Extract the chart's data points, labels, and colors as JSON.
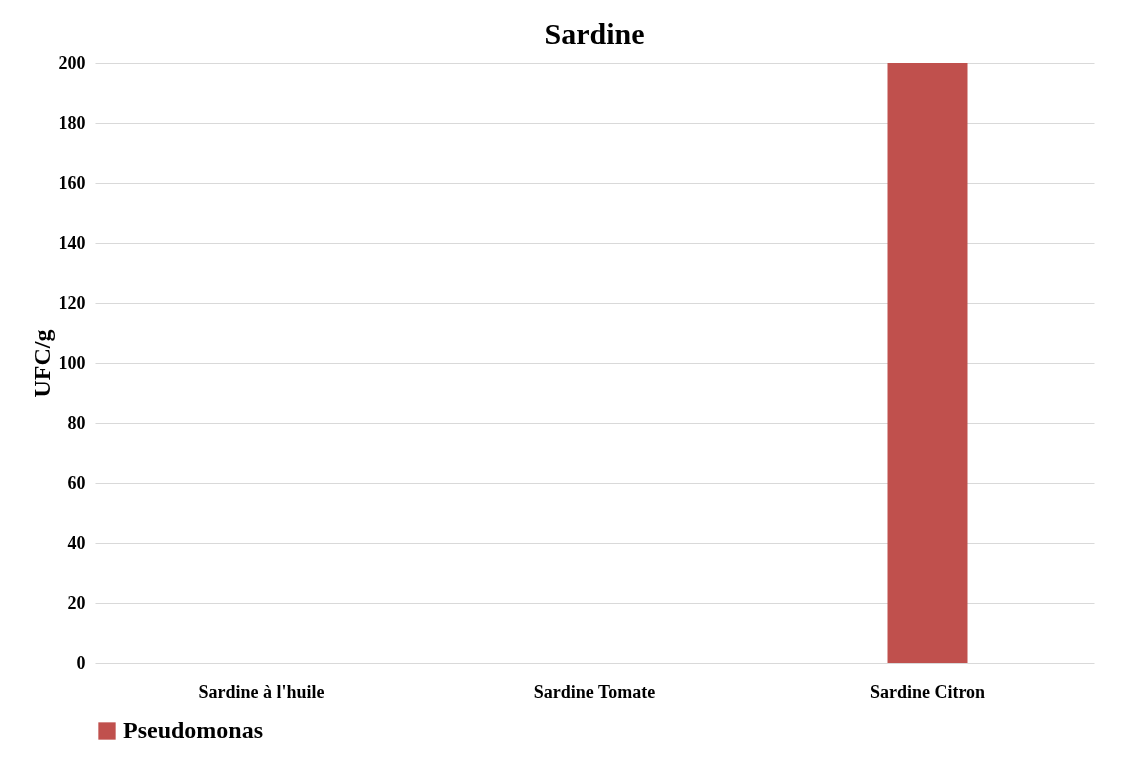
{
  "chart_data": {
    "type": "bar",
    "title": "Sardine",
    "ylabel": "UFC/g",
    "categories": [
      "Sardine à l'huile",
      "Sardine Tomate",
      "Sardine Citron"
    ],
    "series": [
      {
        "name": "Pseudomonas",
        "color": "#c0504d",
        "values": [
          0,
          0,
          200
        ]
      }
    ],
    "ylim": [
      0,
      200
    ],
    "yticks": [
      0,
      20,
      40,
      60,
      80,
      100,
      120,
      140,
      160,
      180,
      200
    ],
    "grid": "y",
    "legend": "bottom"
  }
}
